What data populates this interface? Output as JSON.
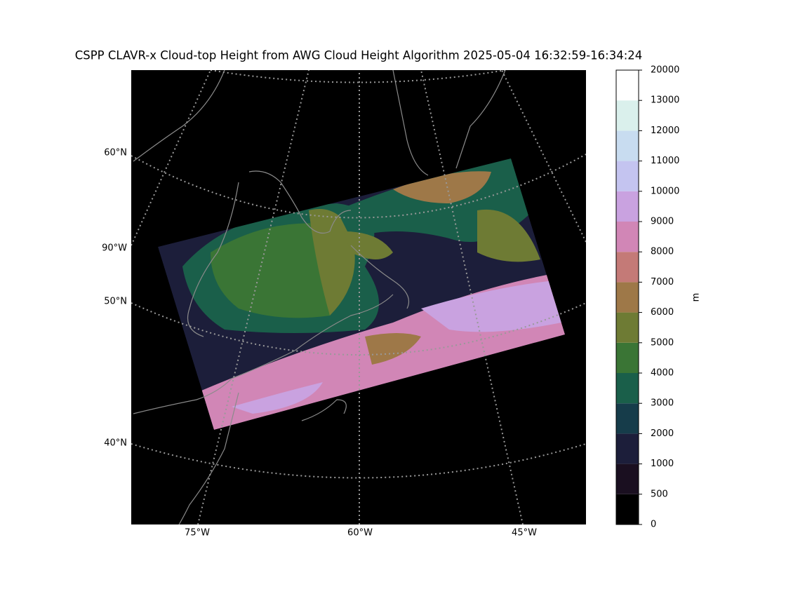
{
  "title": "CSPP CLAVR-x Cloud-top Height from AWG Cloud Height Algorithm 2025-05-04 16:32:59-16:34:24",
  "map": {
    "lat_labels": [
      "60°N",
      "50°N",
      "40°N"
    ],
    "lon_labels": [
      "75°W",
      "60°W",
      "45°W"
    ],
    "side_label": "90°W"
  },
  "colorbar": {
    "unit": "m",
    "ticks": [
      0,
      500,
      1000,
      2000,
      3000,
      4000,
      5000,
      6000,
      7000,
      8000,
      9000,
      10000,
      11000,
      12000,
      13000,
      20000
    ],
    "colors": [
      "#000000",
      "#1a0f20",
      "#1c1e3a",
      "#163c4a",
      "#1a5f4a",
      "#3a7535",
      "#6e7b34",
      "#9e7848",
      "#c47a77",
      "#d186b6",
      "#c9a2e0",
      "#c4c4f0",
      "#c8dcf0",
      "#daf0ec",
      "#ffffff"
    ]
  }
}
